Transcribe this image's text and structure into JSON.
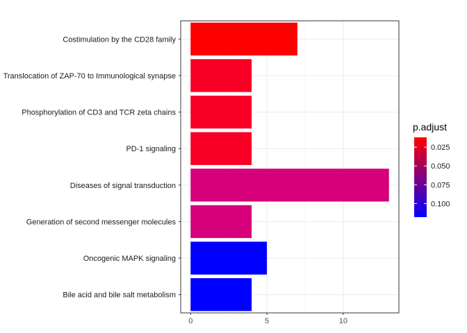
{
  "chart_data": {
    "type": "bar",
    "orientation": "horizontal",
    "categories": [
      "Costimulation by the CD28 family",
      "Translocation of ZAP-70 to Immunological synapse",
      "Phosphorylation of CD3 and TCR zeta chains",
      "PD-1 signaling",
      "Diseases of signal transduction",
      "Generation of second messenger molecules",
      "Oncogenic MAPK signaling",
      "Bile acid and bile salt metabolism"
    ],
    "values": [
      7,
      4,
      4,
      4,
      13,
      4,
      5,
      4
    ],
    "p_adjust": [
      0.012,
      0.02,
      0.02,
      0.02,
      0.055,
      0.055,
      0.118,
      0.118
    ],
    "bar_colors": [
      "#ff0000",
      "#f80026",
      "#f80026",
      "#f80026",
      "#d6007a",
      "#d6007a",
      "#0000ff",
      "#0000ff"
    ],
    "x_ticks": [
      "0",
      "5",
      "10"
    ],
    "x_tick_values": [
      0,
      5,
      10
    ],
    "xlim": [
      -0.65,
      13.65
    ],
    "xlabel": "",
    "ylabel": "",
    "grid": true,
    "legend": {
      "title": "p.adjust",
      "labels": [
        "0.025",
        "0.050",
        "0.075",
        "0.100"
      ],
      "label_values": [
        0.025,
        0.05,
        0.075,
        0.1
      ],
      "range": [
        0.012,
        0.118
      ],
      "colors": [
        "#ff0000",
        "#0000ff"
      ],
      "placement": "right"
    }
  }
}
